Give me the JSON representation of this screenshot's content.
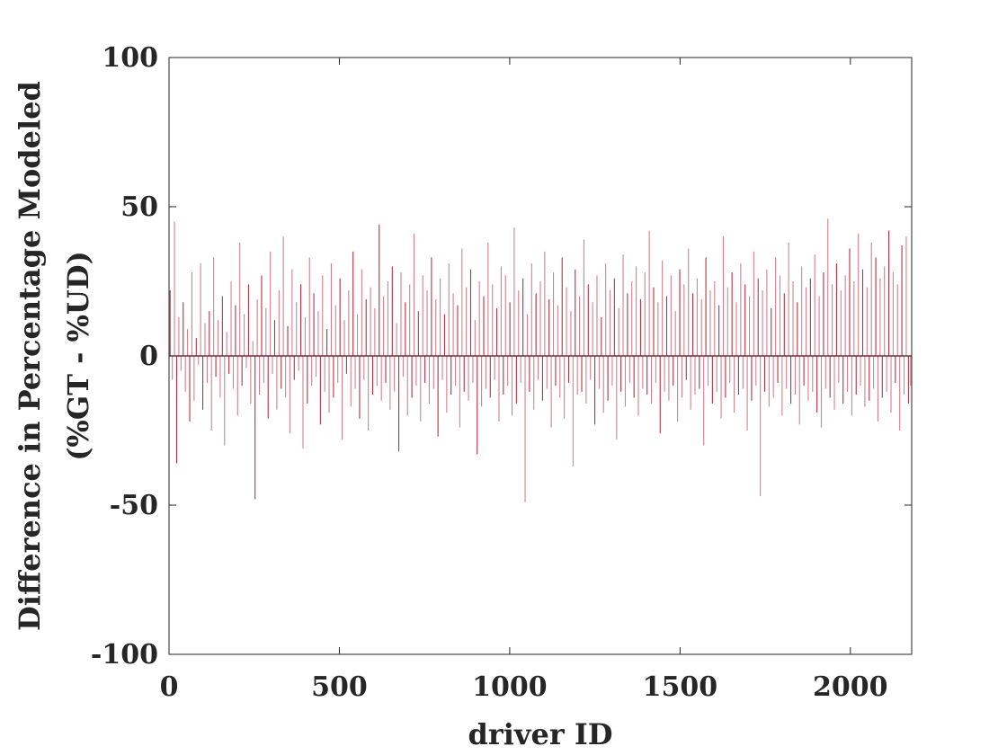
{
  "chart_data": {
    "type": "bar",
    "title": "",
    "xlabel": "driver ID",
    "ylabel_lines": [
      "Difference in Percentage Modeled",
      "(%GT - %UD)"
    ],
    "xlim": [
      0,
      2180
    ],
    "ylim": [
      -100,
      100
    ],
    "xticks": [
      0,
      500,
      1000,
      1500,
      2000
    ],
    "yticks": [
      -100,
      -50,
      0,
      50,
      100
    ],
    "xtick_labels": [
      "0",
      "500",
      "1000",
      "1500",
      "2000"
    ],
    "ytick_labels": [
      "-100",
      "-50",
      "0",
      "50",
      "100"
    ],
    "grid": false,
    "n_drivers": 2180,
    "series": [
      {
        "color": "#b2182b",
        "x_start": 1,
        "x_step": 1,
        "values_note_sampled": true,
        "values": [
          22,
          -8,
          45,
          -36,
          13,
          -5,
          18,
          -12,
          9,
          -22,
          28,
          -15,
          6,
          -3,
          31,
          -18,
          11,
          -9,
          15,
          -25,
          33,
          -7,
          12,
          -14,
          20,
          -30,
          8,
          -6,
          25,
          -11,
          17,
          -20,
          38,
          -10,
          14,
          -4,
          24,
          -16,
          5,
          -48,
          19,
          -13,
          27,
          -9,
          16,
          -21,
          35,
          -6,
          12,
          -18,
          22,
          -11,
          40,
          -14,
          10,
          -26,
          29,
          -8,
          18,
          -5,
          24,
          -31,
          13,
          -16,
          33,
          -10,
          21,
          -7,
          15,
          -23,
          27,
          -12,
          9,
          -19,
          31,
          -14,
          17,
          -9,
          26,
          -28,
          12,
          -6,
          22,
          -17,
          35,
          -11,
          14,
          -21,
          29,
          -8,
          19,
          -25,
          23,
          -13,
          16,
          -10,
          44,
          -15,
          20,
          -9,
          25,
          -18,
          30,
          -12,
          11,
          -32,
          28,
          -7,
          18,
          -20,
          24,
          -14,
          41,
          -10,
          15,
          -22,
          27,
          -9,
          22,
          -16,
          33,
          -11,
          19,
          -27,
          26,
          -8,
          14,
          -19,
          31,
          -13,
          21,
          -10,
          17,
          -24,
          36,
          -12,
          23,
          -15,
          29,
          -9,
          12,
          -33,
          25,
          -17,
          20,
          -11,
          38,
          -14,
          24,
          -8,
          16,
          -22,
          30,
          -13,
          27,
          -10,
          18,
          -20,
          43,
          -16,
          22,
          -9,
          26,
          -49,
          14,
          -12,
          31,
          -18,
          21,
          -8,
          25,
          -15,
          35,
          -11,
          19,
          -24,
          28,
          -10,
          17,
          -14,
          33,
          -21,
          23,
          -9,
          15,
          -37,
          29,
          -13,
          20,
          -12,
          39,
          -16,
          24,
          -8,
          18,
          -23,
          27,
          -11,
          13,
          -19,
          31,
          -15,
          22,
          -10,
          26,
          -28,
          16,
          -12,
          34,
          -17,
          21,
          -9,
          25,
          -14,
          30,
          -20,
          19,
          -11,
          28,
          -13,
          42,
          -16,
          23,
          -9,
          18,
          -26,
          32,
          -12,
          20,
          -15,
          27,
          -10,
          15,
          -22,
          29,
          -14,
          24,
          -8,
          36,
          -18,
          21,
          -13,
          26,
          -11,
          19,
          -30,
          33,
          -10,
          22,
          -16,
          25,
          -12,
          17,
          -21,
          40,
          -14,
          23,
          -9,
          28,
          -19,
          18,
          -13,
          31,
          -11,
          24,
          -25,
          20,
          -15,
          35,
          -10,
          26,
          -47,
          22,
          -12,
          29,
          -17,
          16,
          -14,
          33,
          -9,
          27,
          -20,
          21,
          -11,
          38,
          -16,
          25,
          -13,
          18,
          -23,
          30,
          -10,
          23,
          -15,
          26,
          -12,
          34,
          -19,
          20,
          -24,
          28,
          -11,
          46,
          -14,
          24,
          -18,
          31,
          -9,
          22,
          -16,
          27,
          -12,
          36,
          -20,
          25,
          -13,
          41,
          -10,
          29,
          -17,
          23,
          -15,
          38,
          -11,
          33,
          -22,
          26,
          -14,
          30,
          -12,
          42,
          -19,
          28,
          -9,
          24,
          -25,
          37,
          -13,
          40,
          -16,
          -10
        ]
      }
    ]
  }
}
